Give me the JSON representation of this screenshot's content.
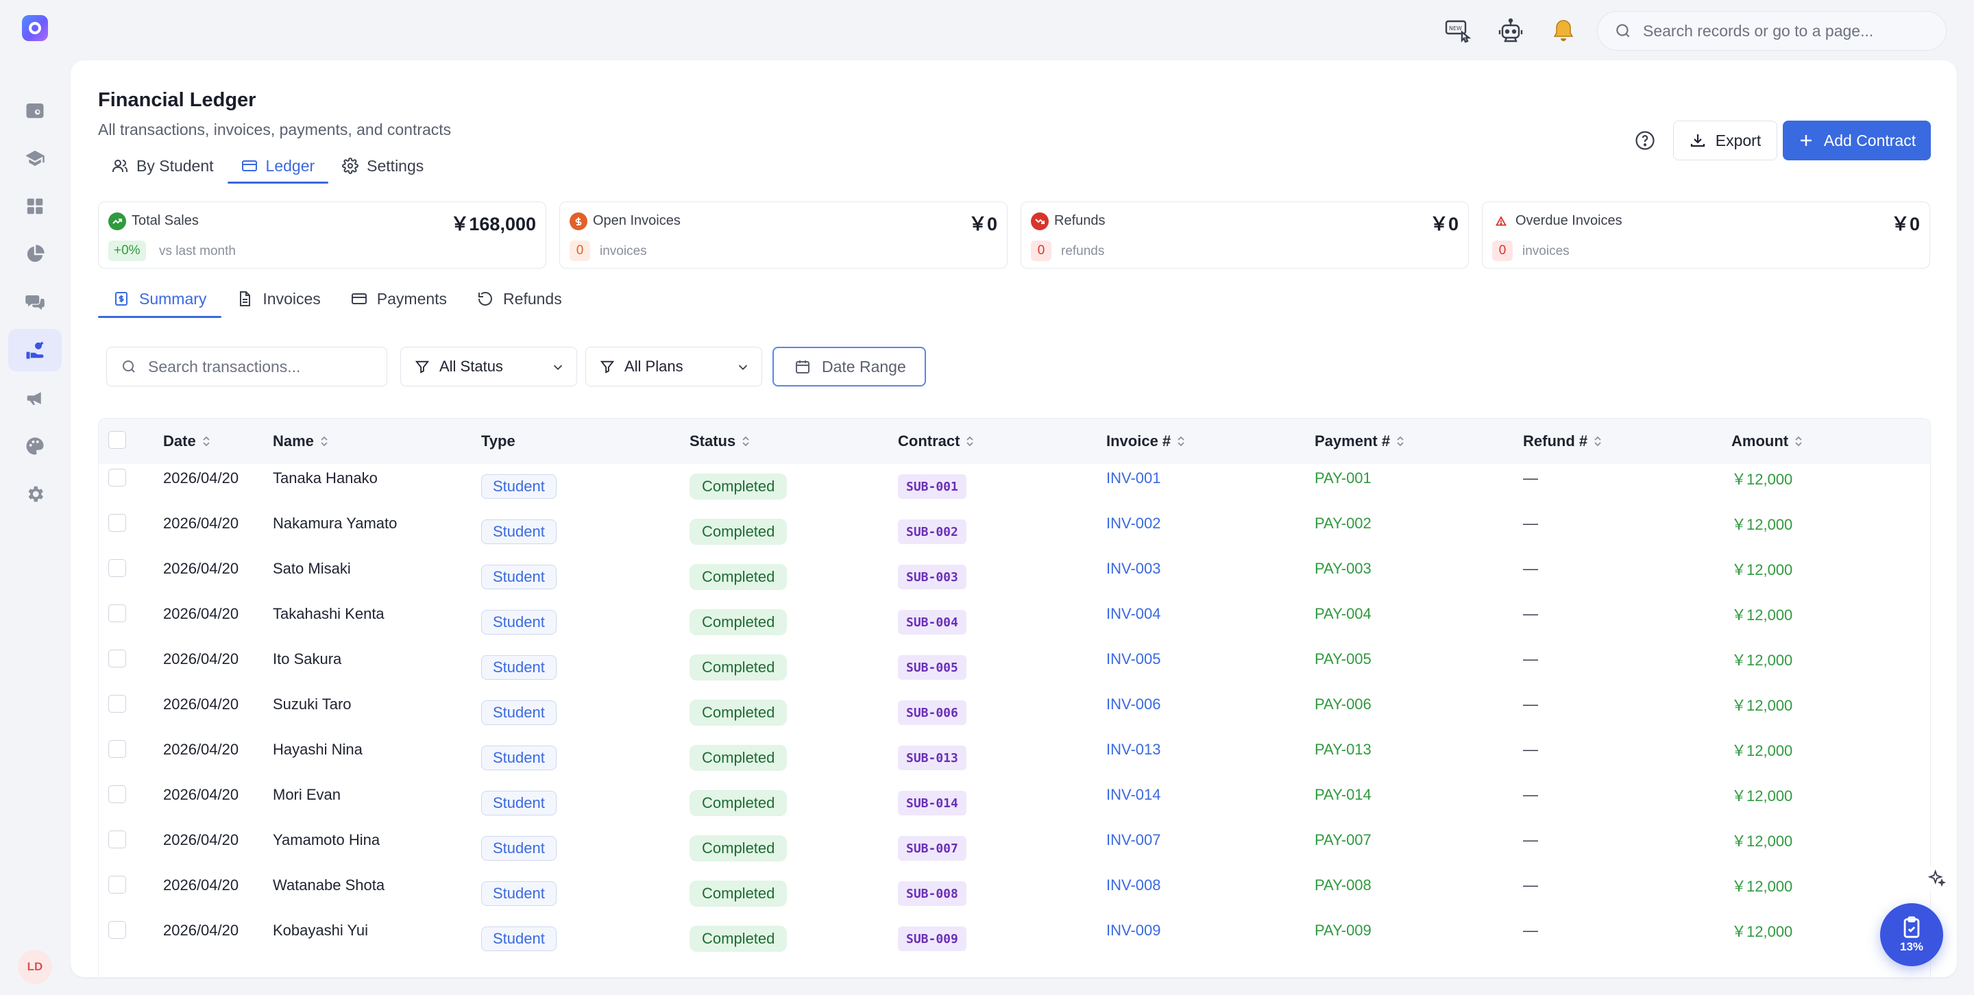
{
  "topbar": {
    "search_placeholder": "Search records or go to a page...",
    "icons": [
      "new-feature-icon",
      "bot-icon",
      "bell-icon"
    ]
  },
  "sidebar": {
    "items": [
      "calendar-icon",
      "graduation-cap-icon",
      "dashboard-icon",
      "pie-chart-icon",
      "chat-icon",
      "finance-icon",
      "megaphone-icon",
      "palette-icon",
      "gear-icon"
    ],
    "active_index": 5,
    "avatar_initials": "LD"
  },
  "header": {
    "title": "Financial Ledger",
    "subtitle": "All transactions, invoices, payments, and contracts",
    "view_tabs": [
      {
        "label": "By Student",
        "icon": "users-icon"
      },
      {
        "label": "Ledger",
        "icon": "card-icon",
        "active": true
      },
      {
        "label": "Settings",
        "icon": "gear-icon"
      }
    ],
    "export_label": "Export",
    "add_contract_label": "Add Contract"
  },
  "stats": [
    {
      "title": "Total Sales",
      "value": "￥168,000",
      "pill": "+0%",
      "caption": "vs last month",
      "color": "#2f9a3e"
    },
    {
      "title": "Open Invoices",
      "value": "￥0",
      "pill": "0",
      "caption": "invoices",
      "color": "#e0622a"
    },
    {
      "title": "Refunds",
      "value": "￥0",
      "pill": "0",
      "caption": "refunds",
      "color": "#d9342b"
    },
    {
      "title": "Overdue Invoices",
      "value": "￥0",
      "pill": "0",
      "caption": "invoices",
      "color": "#d9342b"
    }
  ],
  "sub_tabs": [
    {
      "label": "Summary",
      "active": true
    },
    {
      "label": "Invoices"
    },
    {
      "label": "Payments"
    },
    {
      "label": "Refunds"
    }
  ],
  "filters": {
    "search_placeholder": "Search transactions...",
    "status_value": "All Status",
    "plans_value": "All Plans",
    "date_range_label": "Date Range"
  },
  "table": {
    "columns": [
      "Date",
      "Name",
      "Type",
      "Status",
      "Contract",
      "Invoice #",
      "Payment #",
      "Refund #",
      "Amount"
    ],
    "rows": [
      {
        "date": "2026/04/20",
        "name": "Tanaka Hanako",
        "type": "Student",
        "status": "Completed",
        "contract": "SUB-001",
        "invoice": "INV-001",
        "payment": "PAY-001",
        "refund": "—",
        "amount": "￥12,000"
      },
      {
        "date": "2026/04/20",
        "name": "Nakamura Yamato",
        "type": "Student",
        "status": "Completed",
        "contract": "SUB-002",
        "invoice": "INV-002",
        "payment": "PAY-002",
        "refund": "—",
        "amount": "￥12,000"
      },
      {
        "date": "2026/04/20",
        "name": "Sato Misaki",
        "type": "Student",
        "status": "Completed",
        "contract": "SUB-003",
        "invoice": "INV-003",
        "payment": "PAY-003",
        "refund": "—",
        "amount": "￥12,000"
      },
      {
        "date": "2026/04/20",
        "name": "Takahashi Kenta",
        "type": "Student",
        "status": "Completed",
        "contract": "SUB-004",
        "invoice": "INV-004",
        "payment": "PAY-004",
        "refund": "—",
        "amount": "￥12,000"
      },
      {
        "date": "2026/04/20",
        "name": "Ito Sakura",
        "type": "Student",
        "status": "Completed",
        "contract": "SUB-005",
        "invoice": "INV-005",
        "payment": "PAY-005",
        "refund": "—",
        "amount": "￥12,000"
      },
      {
        "date": "2026/04/20",
        "name": "Suzuki Taro",
        "type": "Student",
        "status": "Completed",
        "contract": "SUB-006",
        "invoice": "INV-006",
        "payment": "PAY-006",
        "refund": "—",
        "amount": "￥12,000"
      },
      {
        "date": "2026/04/20",
        "name": "Hayashi Nina",
        "type": "Student",
        "status": "Completed",
        "contract": "SUB-013",
        "invoice": "INV-013",
        "payment": "PAY-013",
        "refund": "—",
        "amount": "￥12,000"
      },
      {
        "date": "2026/04/20",
        "name": "Mori Evan",
        "type": "Student",
        "status": "Completed",
        "contract": "SUB-014",
        "invoice": "INV-014",
        "payment": "PAY-014",
        "refund": "—",
        "amount": "￥12,000"
      },
      {
        "date": "2026/04/20",
        "name": "Yamamoto Hina",
        "type": "Student",
        "status": "Completed",
        "contract": "SUB-007",
        "invoice": "INV-007",
        "payment": "PAY-007",
        "refund": "—",
        "amount": "￥12,000"
      },
      {
        "date": "2026/04/20",
        "name": "Watanabe Shota",
        "type": "Student",
        "status": "Completed",
        "contract": "SUB-008",
        "invoice": "INV-008",
        "payment": "PAY-008",
        "refund": "—",
        "amount": "￥12,000"
      },
      {
        "date": "2026/04/20",
        "name": "Kobayashi Yui",
        "type": "Student",
        "status": "Completed",
        "contract": "SUB-009",
        "invoice": "INV-009",
        "payment": "PAY-009",
        "refund": "—",
        "amount": "￥12,000"
      }
    ]
  },
  "progress": {
    "percent": 13,
    "label": "13%"
  }
}
